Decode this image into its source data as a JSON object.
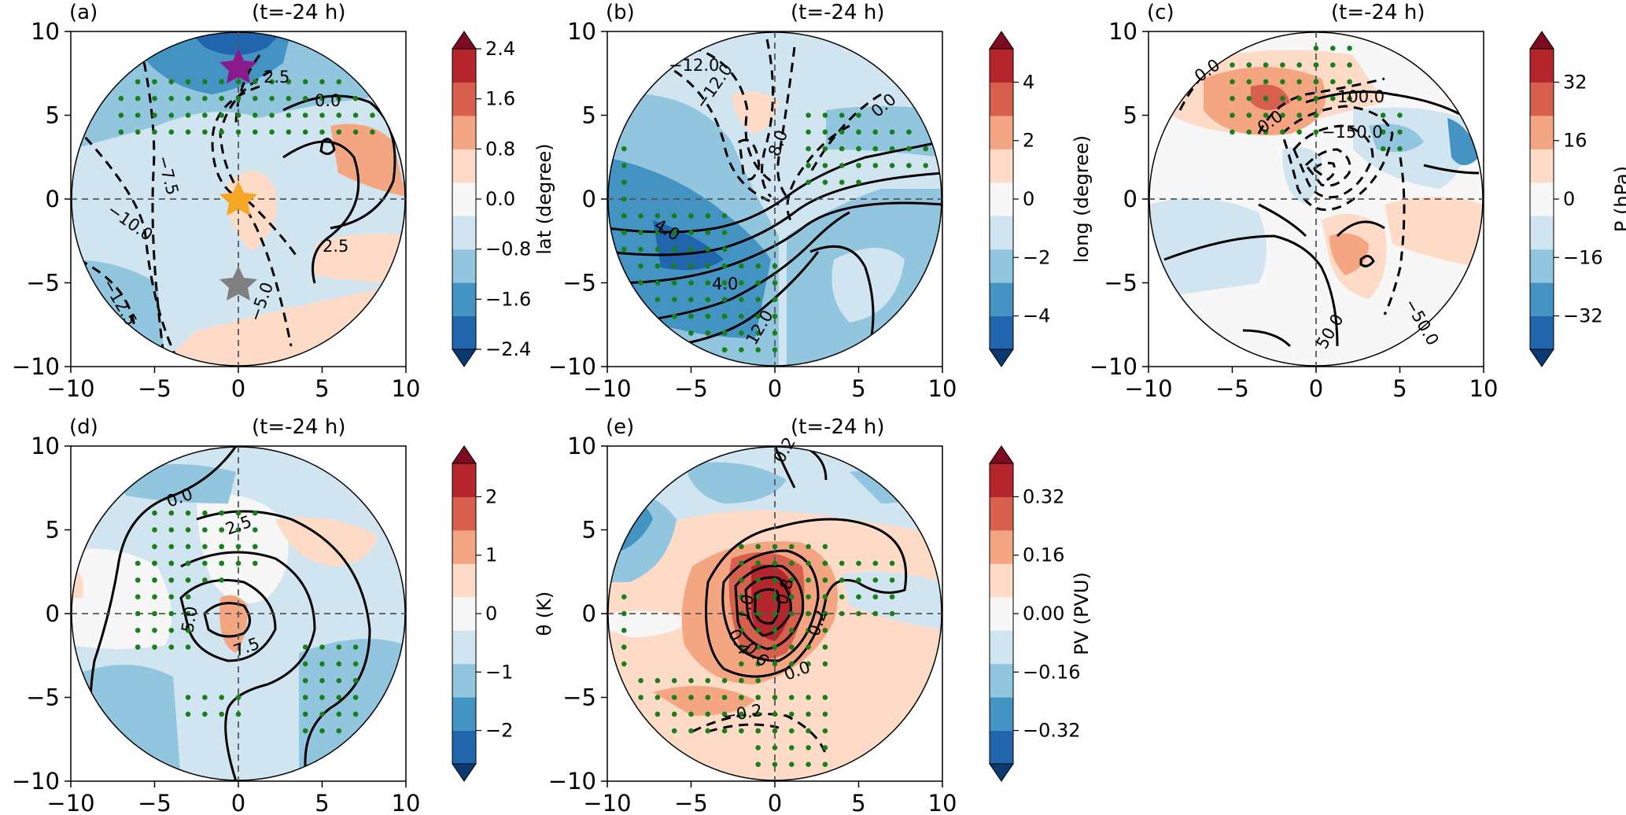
{
  "figure": {
    "colors": {
      "red_dark": "#7d0b22",
      "red_1": "#b4262c",
      "red_2": "#d6604d",
      "red_3": "#f4a582",
      "red_4": "#fddbc7",
      "white": "#f7f7f7",
      "blue_4": "#d1e5f0",
      "blue_3": "#92c5de",
      "blue_2": "#4393c3",
      "blue_1": "#2166ac",
      "blue_dark": "#0b3a73",
      "dot": "#1a7f1a"
    }
  },
  "chart_data": [
    {
      "type": "heatmap",
      "panel": "(a)",
      "time": "(t=-24 h)",
      "xlim": [
        -10,
        10
      ],
      "ylim": [
        -10,
        10
      ],
      "xticks": [
        "−10",
        "−5",
        "0",
        "5",
        "10"
      ],
      "yticks": [
        "10",
        "5",
        "0",
        "−5",
        "−10"
      ],
      "colorbar": {
        "label": "lat (degree)",
        "ticks": [
          "2.4",
          "1.6",
          "0.8",
          "0.0",
          "−0.8",
          "−1.6",
          "−2.4"
        ]
      },
      "contour_labels": [
        "2.5",
        "0.0",
        "2.5",
        "−7.5",
        "−10.0",
        "−12.5",
        "−5.0"
      ],
      "markers": [
        {
          "name": "purple-star",
          "x": 0,
          "y": 8,
          "color": "#8b1a8b"
        },
        {
          "name": "orange-star",
          "x": 0,
          "y": 0,
          "color": "#f5a623"
        },
        {
          "name": "gray-star",
          "x": 0,
          "y": -5,
          "color": "#808080"
        }
      ]
    },
    {
      "type": "heatmap",
      "panel": "(b)",
      "time": "(t=-24 h)",
      "xlim": [
        -10,
        10
      ],
      "ylim": [
        -10,
        10
      ],
      "xticks": [
        "−10",
        "−5",
        "0",
        "5",
        "10"
      ],
      "yticks": [
        "10",
        "5",
        "0",
        "−5",
        "−10"
      ],
      "colorbar": {
        "label": "long (degree)",
        "ticks": [
          "4",
          "2",
          "0",
          "−2",
          "−4"
        ]
      },
      "contour_labels": [
        "−12.0",
        "−12.0",
        "8.0",
        "0.0",
        "4.0",
        "4.0",
        "12.0"
      ]
    },
    {
      "type": "heatmap",
      "panel": "(c)",
      "time": "(t=-24 h)",
      "xlim": [
        -10,
        10
      ],
      "ylim": [
        -10,
        10
      ],
      "xticks": [
        "−10",
        "−5",
        "0",
        "5",
        "10"
      ],
      "yticks": [
        "10",
        "5",
        "0",
        "−5",
        "−10"
      ],
      "colorbar": {
        "label": "P (hPa)",
        "ticks": [
          "32",
          "16",
          "0",
          "−16",
          "−32"
        ]
      },
      "contour_labels": [
        "0.0",
        "0.0",
        "100.0",
        "−150.0",
        "−50.0",
        "50.0"
      ]
    },
    {
      "type": "heatmap",
      "panel": "(d)",
      "time": "(t=-24 h)",
      "xlim": [
        -10,
        10
      ],
      "ylim": [
        -10,
        10
      ],
      "xticks": [
        "−10",
        "−5",
        "0",
        "5",
        "10"
      ],
      "yticks": [
        "10",
        "5",
        "0",
        "−5",
        "−10"
      ],
      "colorbar": {
        "label": "θ (K)",
        "ticks": [
          "2",
          "1",
          "0",
          "−1",
          "−2"
        ]
      },
      "contour_labels": [
        "0.0",
        "2.5",
        "5.0",
        "7.5"
      ]
    },
    {
      "type": "heatmap",
      "panel": "(e)",
      "time": "(t=-24 h)",
      "xlim": [
        -10,
        10
      ],
      "ylim": [
        -10,
        10
      ],
      "xticks": [
        "−10",
        "−5",
        "0",
        "5",
        "10"
      ],
      "yticks": [
        "10",
        "5",
        "0",
        "−5",
        "−10"
      ],
      "colorbar": {
        "label": "PV (PVU)",
        "ticks": [
          "0.32",
          "0.16",
          "0.00",
          "−0.16",
          "−0.32"
        ]
      },
      "contour_labels": [
        "0.2",
        "1.0",
        "0.8",
        "0.4",
        "0.6",
        "0.2",
        "0.0",
        "−0.2"
      ]
    }
  ]
}
